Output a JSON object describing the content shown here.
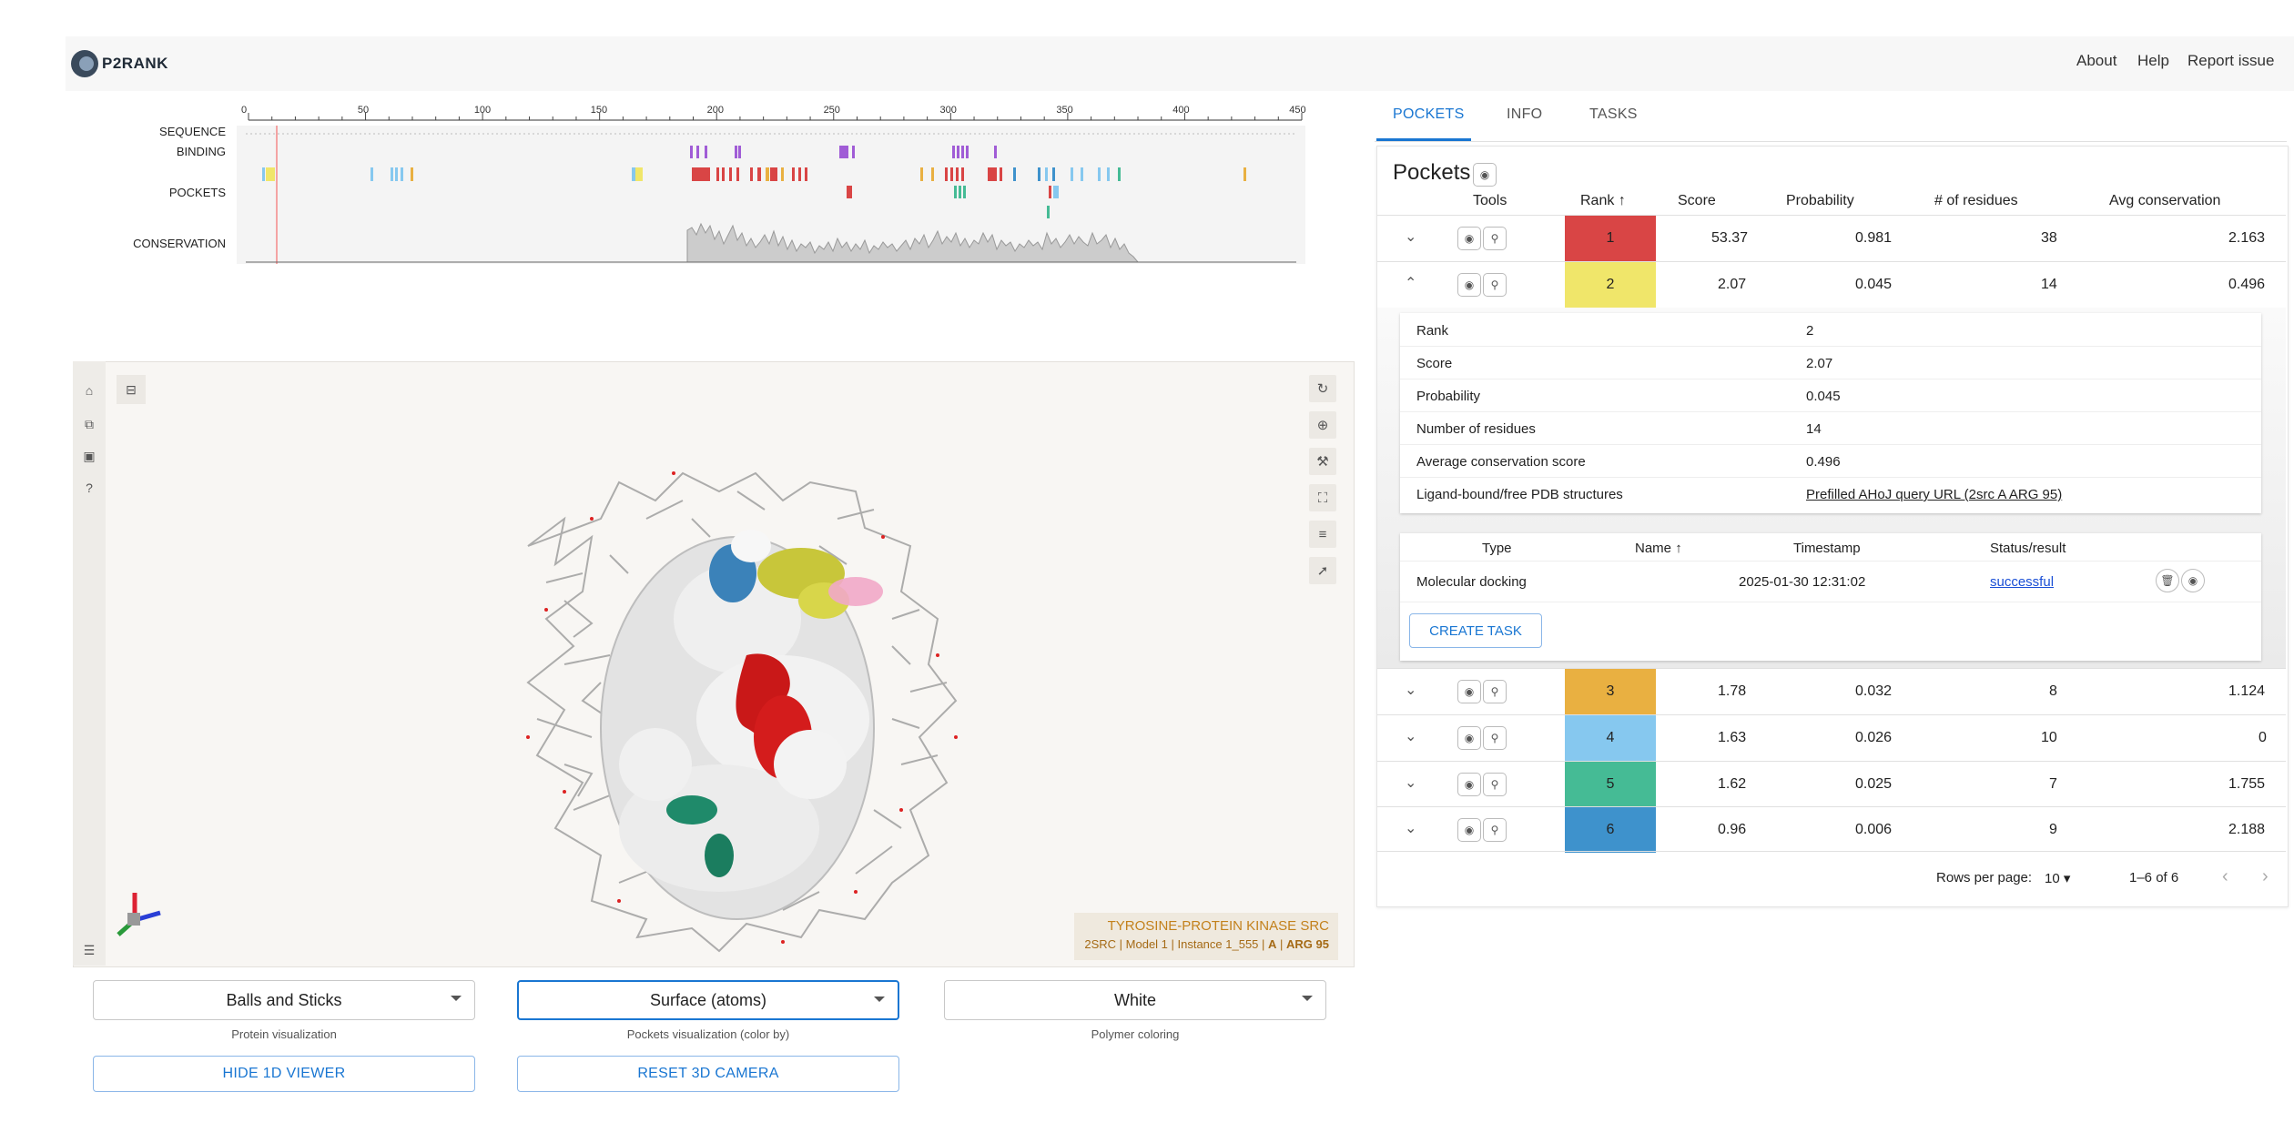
{
  "header": {
    "logo_text": "P2RANK",
    "links": [
      "About",
      "Help",
      "Report issue"
    ]
  },
  "viewer1d": {
    "labels": [
      "SEQUENCE",
      "BINDING",
      "POCKETS",
      "CONSERVATION"
    ],
    "axis_ticks": [
      "0",
      "50",
      "100",
      "150",
      "200",
      "250",
      "300",
      "350",
      "400",
      "450"
    ]
  },
  "viewer3d": {
    "molecule_name": "TYROSINE-PROTEIN KINASE SRC",
    "molecule_detail_prefix": "2SRC | Model 1 | Instance 1_555 |",
    "chain": "A",
    "residue": "ARG 95"
  },
  "controls": {
    "protein_vis": {
      "value": "Balls and Sticks",
      "helper": "Protein visualization"
    },
    "pocket_vis": {
      "value": "Surface (atoms)",
      "helper": "Pockets visualization (color by)"
    },
    "polymer_color": {
      "value": "White",
      "helper": "Polymer coloring"
    },
    "hide_1d_button": "HIDE 1D VIEWER",
    "reset_camera_button": "RESET 3D CAMERA"
  },
  "tabs": [
    "POCKETS",
    "INFO",
    "TASKS"
  ],
  "pockets": {
    "title": "Pockets",
    "columns": [
      "Tools",
      "Rank",
      "Score",
      "Probability",
      "# of residues",
      "Avg conservation"
    ],
    "rows": [
      {
        "rank": "1",
        "score": "53.37",
        "probability": "0.981",
        "residues": "38",
        "conservation": "2.163",
        "color": "#d94545",
        "expanded": false
      },
      {
        "rank": "2",
        "score": "2.07",
        "probability": "0.045",
        "residues": "14",
        "conservation": "0.496",
        "color": "#f0e66a",
        "expanded": true
      },
      {
        "rank": "3",
        "score": "1.78",
        "probability": "0.032",
        "residues": "8",
        "conservation": "1.124",
        "color": "#e9b041",
        "expanded": false
      },
      {
        "rank": "4",
        "score": "1.63",
        "probability": "0.026",
        "residues": "10",
        "conservation": "0",
        "color": "#86c8ef",
        "expanded": false
      },
      {
        "rank": "5",
        "score": "1.62",
        "probability": "0.025",
        "residues": "7",
        "conservation": "1.755",
        "color": "#45bb95",
        "expanded": false
      },
      {
        "rank": "6",
        "score": "0.96",
        "probability": "0.006",
        "residues": "9",
        "conservation": "2.188",
        "color": "#3e92cc",
        "expanded": false
      }
    ],
    "details": [
      {
        "key": "Rank",
        "value": "2"
      },
      {
        "key": "Score",
        "value": "2.07"
      },
      {
        "key": "Probability",
        "value": "0.045"
      },
      {
        "key": "Number of residues",
        "value": "14"
      },
      {
        "key": "Average conservation score",
        "value": "0.496"
      },
      {
        "key": "Ligand-bound/free PDB structures",
        "value": "Prefilled AHoJ query URL (2src A ARG 95)"
      }
    ],
    "tasks_table": {
      "columns": [
        "Type",
        "Name",
        "Timestamp",
        "Status/result"
      ],
      "row": {
        "type": "Molecular docking",
        "name": "",
        "timestamp": "2025-01-30 12:31:02",
        "status": "successful"
      },
      "create_button": "CREATE TASK"
    },
    "pagination": {
      "rows_per_page_label": "Rows per page:",
      "rows_per_page": "10",
      "range": "1–6 of 6"
    }
  }
}
